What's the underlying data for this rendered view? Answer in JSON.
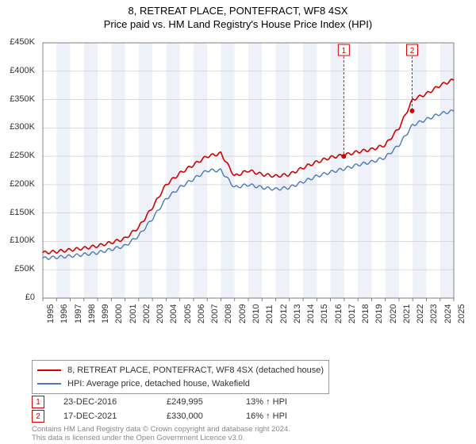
{
  "title_line1": "8, RETREAT PLACE, PONTEFRACT, WF8 4SX",
  "title_line2": "Price paid vs. HM Land Registry's House Price Index (HPI)",
  "chart": {
    "type": "line",
    "background_color": "#ffffff",
    "plot_background_alt": "#eef2f8",
    "grid_color": "#c8c8c8",
    "axis_color": "#666666",
    "tick_fontsize": 11,
    "x_years": [
      1995,
      1996,
      1997,
      1998,
      1999,
      2000,
      2001,
      2002,
      2003,
      2004,
      2005,
      2006,
      2007,
      2008,
      2009,
      2010,
      2011,
      2012,
      2013,
      2014,
      2015,
      2016,
      2017,
      2018,
      2019,
      2020,
      2021,
      2022,
      2023,
      2024,
      2025
    ],
    "ylim": [
      0,
      450000
    ],
    "ytick_step": 50000,
    "ytick_labels": [
      "£0",
      "£50K",
      "£100K",
      "£150K",
      "£200K",
      "£250K",
      "£300K",
      "£350K",
      "£400K",
      "£450K"
    ],
    "series": [
      {
        "name": "8, RETREAT PLACE, PONTEFRACT, WF8 4SX (detached house)",
        "color": "#d40000",
        "line_width": 1.6,
        "values_by_year": {
          "1995": 80000,
          "1996": 82000,
          "1997": 85000,
          "1998": 88000,
          "1999": 92000,
          "2000": 98000,
          "2001": 105000,
          "2002": 125000,
          "2003": 160000,
          "2004": 200000,
          "2005": 220000,
          "2006": 235000,
          "2007": 250000,
          "2008": 255000,
          "2009": 215000,
          "2010": 225000,
          "2011": 218000,
          "2012": 215000,
          "2013": 218000,
          "2014": 230000,
          "2015": 240000,
          "2016": 248000,
          "2017": 252000,
          "2018": 258000,
          "2019": 262000,
          "2020": 270000,
          "2021": 300000,
          "2022": 350000,
          "2023": 360000,
          "2024": 375000,
          "2025": 385000
        }
      },
      {
        "name": "HPI: Average price, detached house, Wakefield",
        "color": "#4a78c0",
        "line_width": 1.4,
        "values_by_year": {
          "1995": 70000,
          "1996": 72000,
          "1997": 74000,
          "1998": 77000,
          "1999": 80000,
          "2000": 86000,
          "2001": 92000,
          "2002": 110000,
          "2003": 140000,
          "2004": 175000,
          "2005": 195000,
          "2006": 210000,
          "2007": 225000,
          "2008": 225000,
          "2009": 195000,
          "2010": 200000,
          "2011": 195000,
          "2012": 192000,
          "2013": 195000,
          "2014": 205000,
          "2015": 215000,
          "2016": 222000,
          "2017": 228000,
          "2018": 235000,
          "2019": 240000,
          "2020": 248000,
          "2021": 270000,
          "2022": 305000,
          "2023": 315000,
          "2024": 325000,
          "2025": 330000
        }
      }
    ],
    "markers": [
      {
        "label": "1",
        "year": 2016.97,
        "price": 249995,
        "badge_y_top": true
      },
      {
        "label": "2",
        "year": 2021.96,
        "price": 330000,
        "badge_y_top": true
      }
    ],
    "marker_style": {
      "dot_color": "#d40000",
      "dot_radius": 3,
      "badge_border": "#d40000",
      "badge_text_color": "#d40000",
      "leader_color": "#d40000",
      "leader_dash": "3,2"
    }
  },
  "legend": {
    "items": [
      {
        "color": "#d40000",
        "label": "8, RETREAT PLACE, PONTEFRACT, WF8 4SX (detached house)"
      },
      {
        "color": "#4a78c0",
        "label": "HPI: Average price, detached house, Wakefield"
      }
    ]
  },
  "marker_table": [
    {
      "n": "1",
      "date": "23-DEC-2016",
      "price": "£249,995",
      "pct": "13% ↑ HPI"
    },
    {
      "n": "2",
      "date": "17-DEC-2021",
      "price": "£330,000",
      "pct": "16% ↑ HPI"
    }
  ],
  "footer_line1": "Contains HM Land Registry data © Crown copyright and database right 2024.",
  "footer_line2": "This data is licensed under the Open Government Licence v3.0."
}
